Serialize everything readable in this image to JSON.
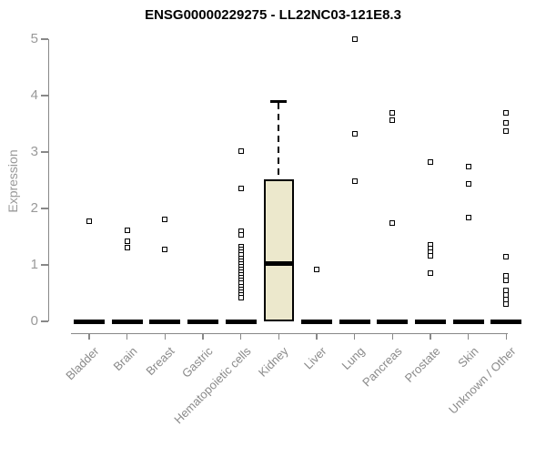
{
  "chart_data": {
    "type": "boxplot",
    "title": "ENSG00000229275 - LL22NC03-121E8.3",
    "ylabel": "Expression",
    "xlabel": "",
    "ylim": [
      0,
      5
    ],
    "yticks": [
      0,
      1,
      2,
      3,
      4,
      5
    ],
    "grid": false,
    "legend": null,
    "categories": [
      "Bladder",
      "Brain",
      "Breast",
      "Gastric",
      "Hematopoietic cells",
      "Kidney",
      "Liver",
      "Lung",
      "Pancreas",
      "Prostate",
      "Skin",
      "Unknown / Other"
    ],
    "boxes": [
      {
        "category": "Bladder",
        "q1": 0,
        "median": 0,
        "q3": 0,
        "whisker_low": 0,
        "whisker_high": 0
      },
      {
        "category": "Brain",
        "q1": 0,
        "median": 0,
        "q3": 0,
        "whisker_low": 0,
        "whisker_high": 0
      },
      {
        "category": "Breast",
        "q1": 0,
        "median": 0,
        "q3": 0,
        "whisker_low": 0,
        "whisker_high": 0
      },
      {
        "category": "Gastric",
        "q1": 0,
        "median": 0,
        "q3": 0,
        "whisker_low": 0,
        "whisker_high": 0
      },
      {
        "category": "Hematopoietic cells",
        "q1": 0,
        "median": 0,
        "q3": 0,
        "whisker_low": 0,
        "whisker_high": 0
      },
      {
        "category": "Kidney",
        "q1": 0,
        "median": 1.03,
        "q3": 2.52,
        "whisker_low": 0,
        "whisker_high": 3.9
      },
      {
        "category": "Liver",
        "q1": 0,
        "median": 0,
        "q3": 0,
        "whisker_low": 0,
        "whisker_high": 0
      },
      {
        "category": "Lung",
        "q1": 0,
        "median": 0,
        "q3": 0,
        "whisker_low": 0,
        "whisker_high": 0
      },
      {
        "category": "Pancreas",
        "q1": 0,
        "median": 0,
        "q3": 0,
        "whisker_low": 0,
        "whisker_high": 0
      },
      {
        "category": "Prostate",
        "q1": 0,
        "median": 0,
        "q3": 0,
        "whisker_low": 0,
        "whisker_high": 0
      },
      {
        "category": "Skin",
        "q1": 0,
        "median": 0,
        "q3": 0,
        "whisker_low": 0,
        "whisker_high": 0
      },
      {
        "category": "Unknown / Other",
        "q1": 0,
        "median": 0,
        "q3": 0,
        "whisker_low": 0,
        "whisker_high": 0
      }
    ],
    "outliers": [
      {
        "category": "Bladder",
        "values": [
          1.78
        ]
      },
      {
        "category": "Brain",
        "values": [
          1.61,
          1.42,
          1.3
        ]
      },
      {
        "category": "Breast",
        "values": [
          1.8,
          1.27
        ]
      },
      {
        "category": "Gastric",
        "values": []
      },
      {
        "category": "Hematopoietic cells",
        "values": [
          3.02,
          2.35,
          1.6,
          1.53,
          1.32,
          1.27,
          1.22,
          1.17,
          1.12,
          1.07,
          1.02,
          0.97,
          0.92,
          0.87,
          0.82,
          0.77,
          0.72,
          0.67,
          0.62,
          0.57,
          0.52,
          0.47,
          0.42
        ]
      },
      {
        "category": "Kidney",
        "values": []
      },
      {
        "category": "Liver",
        "values": [
          0.92
        ]
      },
      {
        "category": "Lung",
        "values": [
          5.0,
          3.33,
          2.48
        ]
      },
      {
        "category": "Pancreas",
        "values": [
          3.7,
          3.56,
          1.74
        ]
      },
      {
        "category": "Prostate",
        "values": [
          2.83,
          1.35,
          1.29,
          1.23,
          1.16,
          0.85
        ]
      },
      {
        "category": "Skin",
        "values": [
          2.75,
          2.43,
          1.84
        ]
      },
      {
        "category": "Unknown / Other",
        "values": [
          3.7,
          3.52,
          3.37,
          1.15,
          0.8,
          0.73,
          0.55,
          0.47,
          0.38,
          0.31
        ]
      }
    ],
    "colors": {
      "box_fill": "#ECE8CC",
      "box_border": "#000000",
      "median": "#000000",
      "point": "#000000",
      "axis": "#888888",
      "tick_label": "#999999",
      "title": "#000000"
    }
  }
}
